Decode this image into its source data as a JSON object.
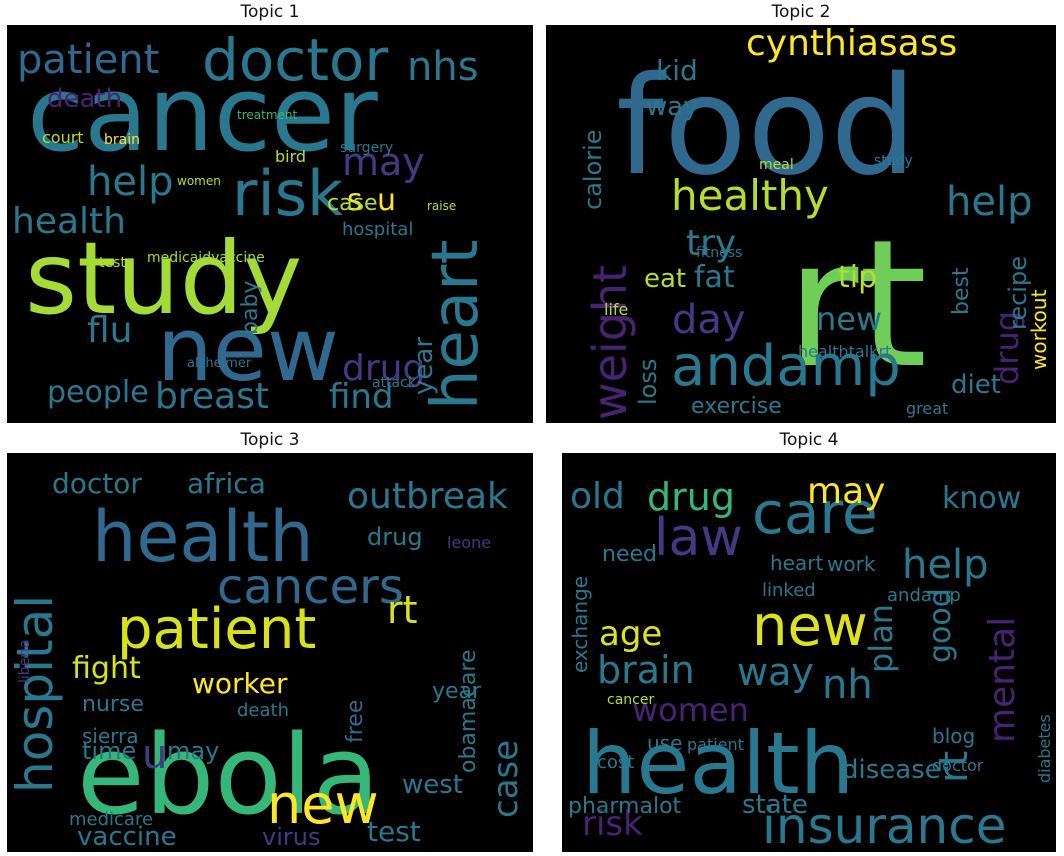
{
  "figure": {
    "panels": [
      {
        "title": "Topic 1",
        "words": [
          {
            "t": "cancer",
            "s": 104,
            "c": "#2a788e"
          },
          {
            "t": "study",
            "s": 100,
            "c": "#a5db36"
          },
          {
            "t": "new",
            "s": 88,
            "c": "#31688e"
          },
          {
            "t": "doctor",
            "s": 58,
            "c": "#2a788e"
          },
          {
            "t": "risk",
            "s": 62,
            "c": "#2a788e"
          },
          {
            "t": "heart",
            "s": 64,
            "c": "#2a788e"
          },
          {
            "t": "patient",
            "s": 40,
            "c": "#31688e"
          },
          {
            "t": "nhs",
            "s": 40,
            "c": "#2a788e"
          },
          {
            "t": "help",
            "s": 40,
            "c": "#2a788e"
          },
          {
            "t": "health",
            "s": 36,
            "c": "#2a788e"
          },
          {
            "t": "breast",
            "s": 36,
            "c": "#2a788e"
          },
          {
            "t": "find",
            "s": 34,
            "c": "#2a788e"
          },
          {
            "t": "flu",
            "s": 36,
            "c": "#2a788e"
          },
          {
            "t": "people",
            "s": 30,
            "c": "#2a788e"
          },
          {
            "t": "drug",
            "s": 36,
            "c": "#443983"
          },
          {
            "t": "may",
            "s": 38,
            "c": "#443983"
          },
          {
            "t": "death",
            "s": 26,
            "c": "#482374"
          },
          {
            "t": "s",
            "s": 30,
            "c": "#fde725"
          },
          {
            "t": "u",
            "s": 30,
            "c": "#fde725"
          },
          {
            "t": "hospital",
            "s": 18,
            "c": "#2a788e"
          },
          {
            "t": "case",
            "s": 22,
            "c": "#b5de2b"
          },
          {
            "t": "year",
            "s": 26,
            "c": "#2a788e"
          },
          {
            "t": "bird",
            "s": 16,
            "c": "#b5de2b"
          },
          {
            "t": "court",
            "s": 16,
            "c": "#b5de2b"
          },
          {
            "t": "brain",
            "s": 14,
            "c": "#fde725"
          },
          {
            "t": "surgery",
            "s": 14,
            "c": "#2a788e"
          },
          {
            "t": "medicaidvaccine",
            "s": 14,
            "c": "#a5db36"
          },
          {
            "t": "treatment",
            "s": 12,
            "c": "#35b779"
          },
          {
            "t": "alzheimer",
            "s": 13,
            "c": "#2a788e"
          },
          {
            "t": "attack",
            "s": 14,
            "c": "#2a788e"
          },
          {
            "t": "test",
            "s": 14,
            "c": "#b5de2b"
          },
          {
            "t": "women",
            "s": 12,
            "c": "#b5de2b"
          },
          {
            "t": "baby",
            "s": 22,
            "c": "#2a788e"
          },
          {
            "t": "raise",
            "s": 12,
            "c": "#b5de2b"
          }
        ]
      },
      {
        "title": "Topic 2",
        "words": [
          {
            "t": "food",
            "s": 136,
            "c": "#31688e"
          },
          {
            "t": "rt",
            "s": 176,
            "c": "#6ece58"
          },
          {
            "t": "andamp",
            "s": 56,
            "c": "#2a788e"
          },
          {
            "t": "healthy",
            "s": 42,
            "c": "#b5de2b"
          },
          {
            "t": "cynthiasass",
            "s": 36,
            "c": "#fde725"
          },
          {
            "t": "help",
            "s": 40,
            "c": "#2a788e"
          },
          {
            "t": "weight",
            "s": 46,
            "c": "#482374"
          },
          {
            "t": "day",
            "s": 40,
            "c": "#443983"
          },
          {
            "t": "try",
            "s": 36,
            "c": "#2a788e"
          },
          {
            "t": "calorie",
            "s": 24,
            "c": "#2a788e"
          },
          {
            "t": "eat",
            "s": 26,
            "c": "#b5de2b"
          },
          {
            "t": "fat",
            "s": 30,
            "c": "#2a788e"
          },
          {
            "t": "tip",
            "s": 30,
            "c": "#b5de2b"
          },
          {
            "t": "new",
            "s": 32,
            "c": "#2a788e"
          },
          {
            "t": "drug",
            "s": 32,
            "c": "#482374"
          },
          {
            "t": "exercise",
            "s": 22,
            "c": "#2a788e"
          },
          {
            "t": "diet",
            "s": 26,
            "c": "#2a788e"
          },
          {
            "t": "workout",
            "s": 20,
            "c": "#fde725"
          },
          {
            "t": "recipe",
            "s": 24,
            "c": "#2a788e"
          },
          {
            "t": "kid",
            "s": 28,
            "c": "#2a788e"
          },
          {
            "t": "way",
            "s": 26,
            "c": "#2a788e"
          },
          {
            "t": "loss",
            "s": 24,
            "c": "#2a788e"
          },
          {
            "t": "best",
            "s": 22,
            "c": "#2a788e"
          },
          {
            "t": "fitness",
            "s": 14,
            "c": "#2a788e"
          },
          {
            "t": "healthtalkrt",
            "s": 16,
            "c": "#2a788e"
          },
          {
            "t": "great",
            "s": 16,
            "c": "#2a788e"
          },
          {
            "t": "life",
            "s": 16,
            "c": "#b5de2b"
          },
          {
            "t": "meal",
            "s": 14,
            "c": "#b5de2b"
          },
          {
            "t": "study",
            "s": 14,
            "c": "#2a788e"
          }
        ]
      },
      {
        "title": "Topic 3",
        "words": [
          {
            "t": "ebola",
            "s": 110,
            "c": "#35b779"
          },
          {
            "t": "health",
            "s": 70,
            "c": "#31688e"
          },
          {
            "t": "patient",
            "s": 56,
            "c": "#d8e219"
          },
          {
            "t": "cancers",
            "s": 48,
            "c": "#31688e"
          },
          {
            "t": "new",
            "s": 54,
            "c": "#fde725"
          },
          {
            "t": "hospital",
            "s": 50,
            "c": "#2a788e"
          },
          {
            "t": "outbreak",
            "s": 36,
            "c": "#2a788e"
          },
          {
            "t": "africa",
            "s": 28,
            "c": "#2a788e"
          },
          {
            "t": "doctor",
            "s": 28,
            "c": "#2a788e"
          },
          {
            "t": "fight",
            "s": 30,
            "c": "#d8e219"
          },
          {
            "t": "worker",
            "s": 28,
            "c": "#fde725"
          },
          {
            "t": "rt",
            "s": 38,
            "c": "#d8e219"
          },
          {
            "t": "u",
            "s": 40,
            "c": "#443983"
          },
          {
            "t": "obamacare",
            "s": 22,
            "c": "#2a788e"
          },
          {
            "t": "case",
            "s": 34,
            "c": "#2a788e"
          },
          {
            "t": "vaccine",
            "s": 26,
            "c": "#2a788e"
          },
          {
            "t": "virus",
            "s": 24,
            "c": "#443983"
          },
          {
            "t": "test",
            "s": 28,
            "c": "#2a788e"
          },
          {
            "t": "west",
            "s": 26,
            "c": "#2a788e"
          },
          {
            "t": "time",
            "s": 24,
            "c": "#2a788e"
          },
          {
            "t": "may",
            "s": 24,
            "c": "#2a788e"
          },
          {
            "t": "nurse",
            "s": 22,
            "c": "#2a788e"
          },
          {
            "t": "sierra",
            "s": 20,
            "c": "#2a788e"
          },
          {
            "t": "drug",
            "s": 24,
            "c": "#2a788e"
          },
          {
            "t": "year",
            "s": 22,
            "c": "#2a788e"
          },
          {
            "t": "death",
            "s": 18,
            "c": "#2a788e"
          },
          {
            "t": "leone",
            "s": 16,
            "c": "#443983"
          },
          {
            "t": "liberia",
            "s": 14,
            "c": "#443983"
          },
          {
            "t": "free",
            "s": 22,
            "c": "#31688e"
          },
          {
            "t": "medicare",
            "s": 18,
            "c": "#2a788e"
          }
        ]
      },
      {
        "title": "Topic 4",
        "words": [
          {
            "t": "health",
            "s": 86,
            "c": "#2a788e"
          },
          {
            "t": "care",
            "s": 58,
            "c": "#2a788e"
          },
          {
            "t": "law",
            "s": 52,
            "c": "#443983"
          },
          {
            "t": "new",
            "s": 56,
            "c": "#dde318"
          },
          {
            "t": "insurance",
            "s": 50,
            "c": "#2a788e"
          },
          {
            "t": "help",
            "s": 40,
            "c": "#2a788e"
          },
          {
            "t": "drug",
            "s": 38,
            "c": "#35b779"
          },
          {
            "t": "may",
            "s": 36,
            "c": "#fde725"
          },
          {
            "t": "old",
            "s": 36,
            "c": "#2a788e"
          },
          {
            "t": "brain",
            "s": 38,
            "c": "#2a788e"
          },
          {
            "t": "nh",
            "s": 40,
            "c": "#2a788e"
          },
          {
            "t": "way",
            "s": 38,
            "c": "#2a788e"
          },
          {
            "t": "age",
            "s": 34,
            "c": "#dde318"
          },
          {
            "t": "women",
            "s": 32,
            "c": "#482374"
          },
          {
            "t": "plan",
            "s": 32,
            "c": "#2a788e"
          },
          {
            "t": "good",
            "s": 30,
            "c": "#2a788e"
          },
          {
            "t": "mental",
            "s": 36,
            "c": "#482374"
          },
          {
            "t": "know",
            "s": 30,
            "c": "#2a788e"
          },
          {
            "t": "risk",
            "s": 34,
            "c": "#482374"
          },
          {
            "t": "pharmalot",
            "s": 22,
            "c": "#2a788e"
          },
          {
            "t": "state",
            "s": 26,
            "c": "#2a788e"
          },
          {
            "t": "disease",
            "s": 26,
            "c": "#2a788e"
          },
          {
            "t": "rt",
            "s": 40,
            "c": "#2a788e"
          },
          {
            "t": "heart",
            "s": 20,
            "c": "#2a788e"
          },
          {
            "t": "andamp",
            "s": 18,
            "c": "#2a788e"
          },
          {
            "t": "exchange",
            "s": 20,
            "c": "#2a788e"
          },
          {
            "t": "need",
            "s": 22,
            "c": "#2a788e"
          },
          {
            "t": "linked",
            "s": 18,
            "c": "#2a788e"
          },
          {
            "t": "blog",
            "s": 20,
            "c": "#2a788e"
          },
          {
            "t": "work",
            "s": 20,
            "c": "#2a788e"
          },
          {
            "t": "use",
            "s": 20,
            "c": "#2a788e"
          },
          {
            "t": "patient",
            "s": 16,
            "c": "#2a788e"
          },
          {
            "t": "cost",
            "s": 18,
            "c": "#2a788e"
          },
          {
            "t": "cancer",
            "s": 14,
            "c": "#b5de2b"
          },
          {
            "t": "diabetes",
            "s": 16,
            "c": "#2a788e"
          },
          {
            "t": "doctor",
            "s": 16,
            "c": "#2a788e"
          }
        ]
      }
    ]
  }
}
